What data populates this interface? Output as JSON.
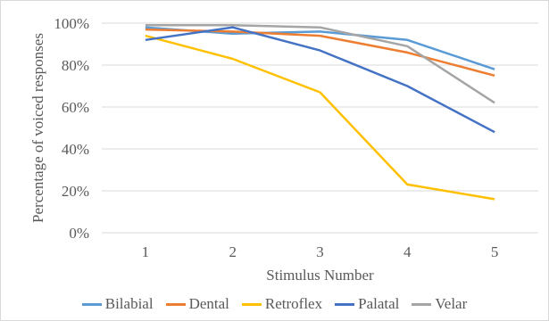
{
  "chart_data": {
    "type": "line",
    "title": "",
    "xlabel": "Stimulus Number",
    "ylabel": "Percentage of voiced responses",
    "categories": [
      "1",
      "2",
      "3",
      "4",
      "5"
    ],
    "ylim": [
      0,
      100
    ],
    "yticks": [
      "0%",
      "20%",
      "40%",
      "60%",
      "80%",
      "100%"
    ],
    "grid": "horizontal",
    "legend_position": "bottom",
    "series": [
      {
        "name": "Bilabial",
        "color": "#5b9bd5",
        "values": [
          98,
          95,
          96,
          92,
          78
        ]
      },
      {
        "name": "Dental",
        "color": "#ed7d31",
        "values": [
          97,
          96,
          94,
          86,
          75
        ]
      },
      {
        "name": "Retroflex",
        "color": "#ffc000",
        "values": [
          94,
          83,
          67,
          23,
          16
        ]
      },
      {
        "name": "Palatal",
        "color": "#4472c4",
        "values": [
          92,
          98,
          87,
          70,
          48
        ]
      },
      {
        "name": "Velar",
        "color": "#a5a5a5",
        "values": [
          99,
          99,
          98,
          89,
          62
        ]
      }
    ]
  }
}
